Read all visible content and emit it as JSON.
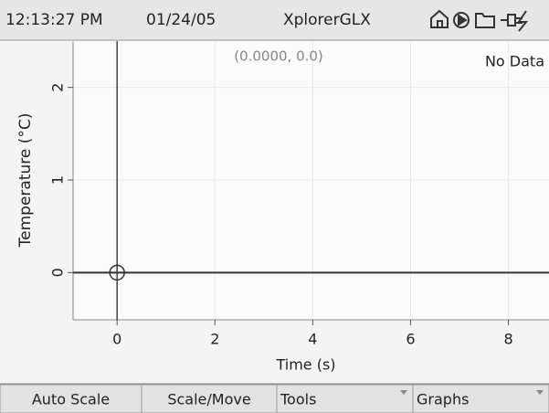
{
  "status_bar": {
    "time": "12:13:27 PM",
    "date": "01/24/05",
    "title": "XplorerGLX"
  },
  "graph": {
    "type": "line",
    "cursor_readout": "(0.0000, 0.0)",
    "message": "No Data",
    "x_label": "Time (s)",
    "y_label": "Temperature (°C)",
    "xlim": [
      -0.9,
      8.83
    ],
    "ylim": [
      -0.51,
      2.5
    ],
    "xticks": [
      0,
      2,
      4,
      6,
      8
    ],
    "yticks": [
      0,
      1,
      2
    ],
    "grid": true,
    "cursor": [
      0,
      0
    ]
  },
  "softkeys": [
    "Auto Scale",
    "Scale/Move",
    "Tools",
    "Graphs"
  ]
}
